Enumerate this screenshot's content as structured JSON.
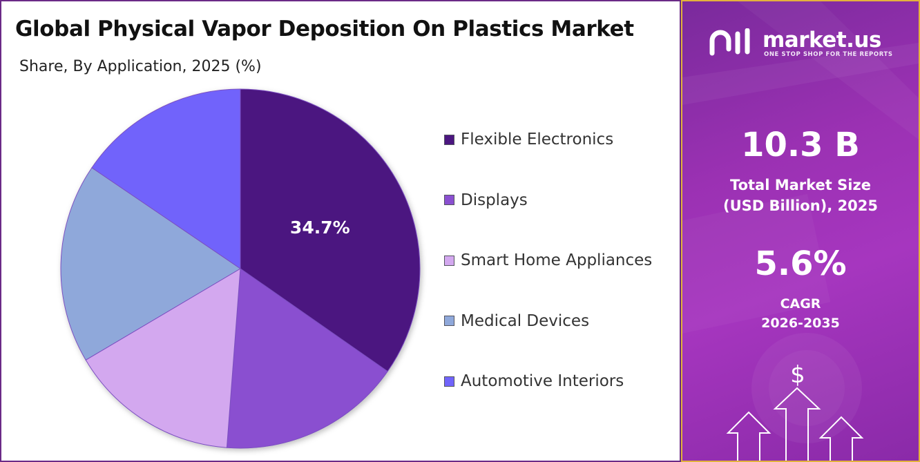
{
  "title": "Global Physical Vapor Deposition On Plastics Market",
  "subtitle": "Share, By Application, 2025 (%)",
  "chart_data": {
    "type": "pie",
    "title": "Global Physical Vapor Deposition On Plastics Market",
    "subtitle": "Share, By Application, 2025 (%)",
    "categories": [
      "Flexible Electronics",
      "Displays",
      "Smart Home Appliances",
      "Medical Devices",
      "Automotive Interiors"
    ],
    "values": [
      34.7,
      16.5,
      15.3,
      18.0,
      15.5
    ],
    "data_labels": [
      "34.7%",
      "",
      "",
      "",
      ""
    ],
    "colors": [
      "#4b1680",
      "#8a4fd0",
      "#d3a8ef",
      "#8fa8da",
      "#7164fb"
    ],
    "legend_position": "right",
    "start_angle": "12 o'clock, clockwise"
  },
  "brand": {
    "name": "market.us",
    "tagline": "ONE STOP SHOP FOR THE REPORTS"
  },
  "stats": {
    "market_size_value": "10.3 B",
    "market_size_label_line1": "Total Market Size",
    "market_size_label_line2": "(USD Billion), 2025",
    "cagr_value": "5.6%",
    "cagr_label": "CAGR",
    "cagr_period": "2026-2035"
  },
  "decor": {
    "currency_symbol": "$",
    "panel_gradient": [
      "#7a2a9c",
      "#a636bf"
    ],
    "panel_border": "#e3b23c",
    "main_border": "#6b2a86"
  }
}
